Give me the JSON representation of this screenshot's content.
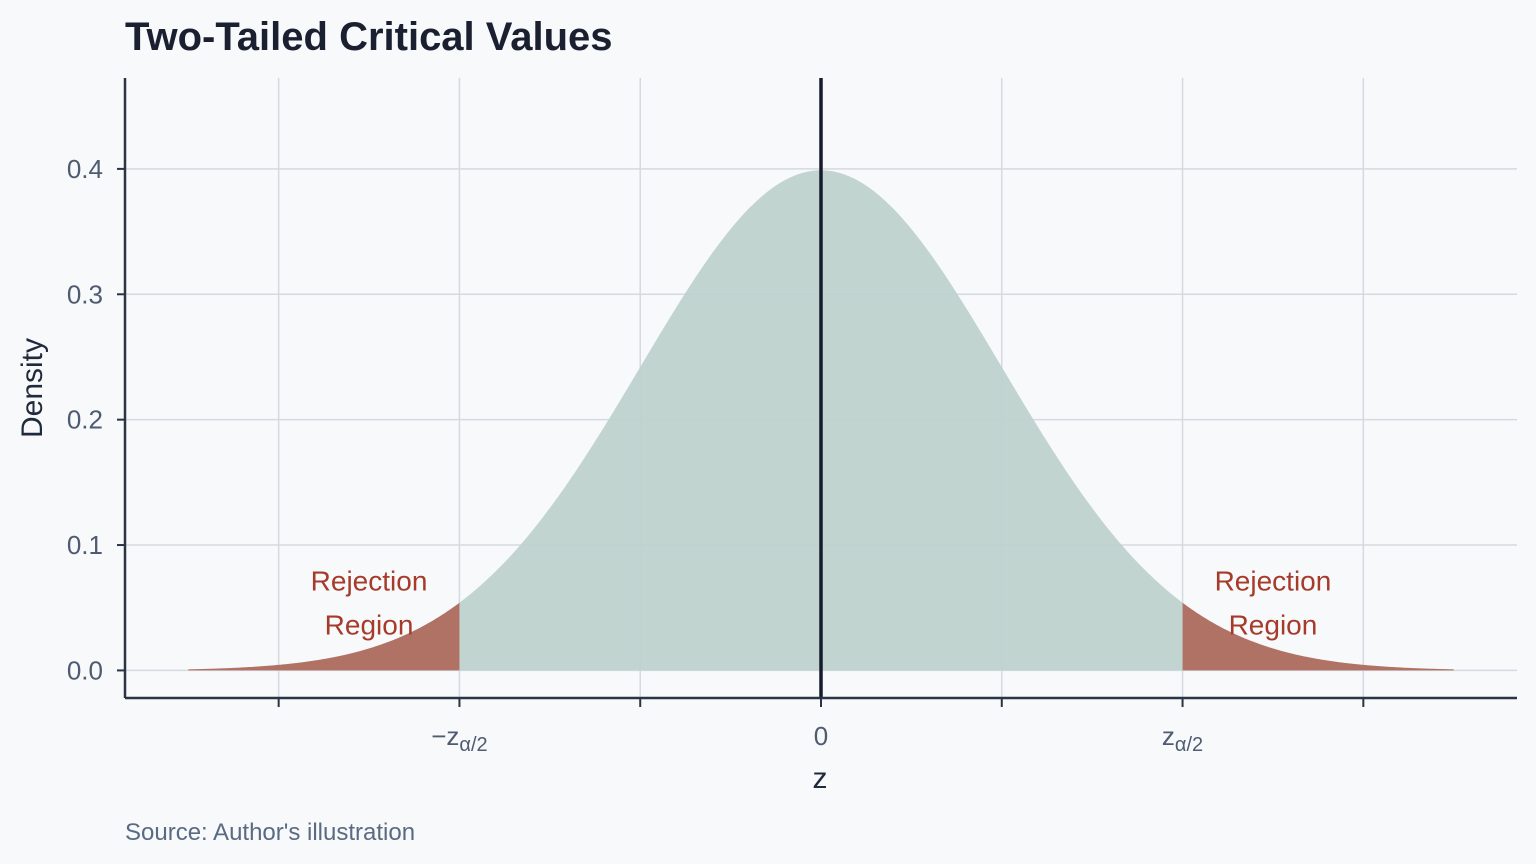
{
  "chart_data": {
    "type": "area",
    "title": "Two-Tailed Critical Values",
    "xlabel": "z",
    "ylabel": "Density",
    "source": "Source: Author's illustration",
    "distribution": "standard normal",
    "xlim": [
      -3.85,
      3.85
    ],
    "ylim": [
      -0.022,
      0.4725
    ],
    "curve_x_range": [
      -3.5,
      3.5
    ],
    "critical_value": 2,
    "yticks": [
      0.0,
      0.1,
      0.2,
      0.3,
      0.4
    ],
    "ytick_labels": [
      "0.0",
      "0.1",
      "0.2",
      "0.3",
      "0.4"
    ],
    "xtick_positions": [
      -3,
      -2,
      -1,
      0,
      1,
      2,
      3
    ],
    "xticks": [
      {
        "x": -2,
        "main": "−z",
        "sub": "α/2"
      },
      {
        "x": 0,
        "main": "0",
        "sub": ""
      },
      {
        "x": 2,
        "main": "z",
        "sub": "α/2"
      }
    ],
    "grid": true,
    "annotations": [
      {
        "x": -2.5,
        "y": 0.07,
        "lines": [
          "Rejection",
          "Region"
        ]
      },
      {
        "x": 2.5,
        "y": 0.07,
        "lines": [
          "Rejection",
          "Region"
        ]
      }
    ],
    "colors": {
      "center_fill": "#bfd2cd",
      "tail_fill": "#b07264",
      "annotation": "#a63b2a",
      "grid": "#d5d9e0",
      "axis": "#2a3444",
      "mean_line": "#151d2b"
    }
  }
}
